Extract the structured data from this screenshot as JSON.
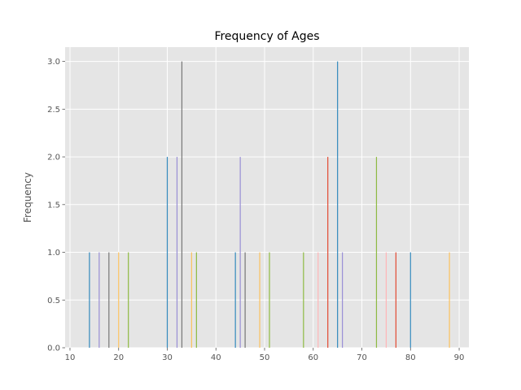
{
  "chart_data": {
    "type": "bar",
    "title": "Frequency of Ages",
    "xlabel": "",
    "ylabel": "Frequency",
    "xlim": [
      9,
      92
    ],
    "ylim": [
      0,
      3.15
    ],
    "x_ticks": [
      10,
      20,
      30,
      40,
      50,
      60,
      70,
      80,
      90
    ],
    "y_ticks": [
      0.0,
      0.5,
      1.0,
      1.5,
      2.0,
      2.5,
      3.0
    ],
    "grid": true,
    "points": [
      {
        "x": 14,
        "y": 1,
        "color": "#348ABD"
      },
      {
        "x": 16,
        "y": 1,
        "color": "#988ED5"
      },
      {
        "x": 18,
        "y": 1,
        "color": "#777777"
      },
      {
        "x": 20,
        "y": 1,
        "color": "#FBC15E"
      },
      {
        "x": 22,
        "y": 1,
        "color": "#8EBA42"
      },
      {
        "x": 30,
        "y": 2,
        "color": "#348ABD"
      },
      {
        "x": 32,
        "y": 2,
        "color": "#988ED5"
      },
      {
        "x": 33,
        "y": 3,
        "color": "#777777"
      },
      {
        "x": 35,
        "y": 1,
        "color": "#FBC15E"
      },
      {
        "x": 36,
        "y": 1,
        "color": "#8EBA42"
      },
      {
        "x": 44,
        "y": 1,
        "color": "#348ABD"
      },
      {
        "x": 45,
        "y": 2,
        "color": "#988ED5"
      },
      {
        "x": 46,
        "y": 1,
        "color": "#777777"
      },
      {
        "x": 49,
        "y": 1,
        "color": "#FBC15E"
      },
      {
        "x": 51,
        "y": 1,
        "color": "#8EBA42"
      },
      {
        "x": 58,
        "y": 1,
        "color": "#8EBA42"
      },
      {
        "x": 61,
        "y": 1,
        "color": "#FFB5B8"
      },
      {
        "x": 63,
        "y": 2,
        "color": "#E24A33"
      },
      {
        "x": 65,
        "y": 3,
        "color": "#348ABD"
      },
      {
        "x": 66,
        "y": 1,
        "color": "#988ED5"
      },
      {
        "x": 73,
        "y": 2,
        "color": "#8EBA42"
      },
      {
        "x": 75,
        "y": 1,
        "color": "#FFB5B8"
      },
      {
        "x": 77,
        "y": 1,
        "color": "#E24A33"
      },
      {
        "x": 80,
        "y": 1,
        "color": "#348ABD"
      },
      {
        "x": 88,
        "y": 1,
        "color": "#FBC15E"
      }
    ]
  }
}
